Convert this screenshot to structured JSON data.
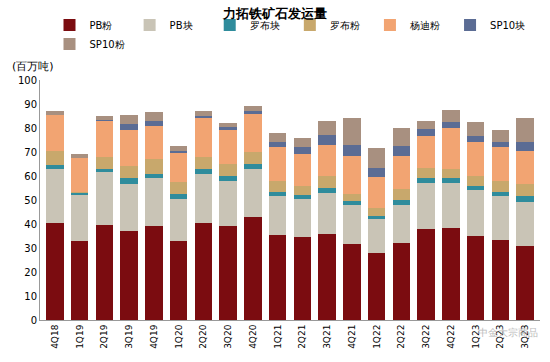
{
  "chart_data": {
    "type": "bar",
    "stacked": true,
    "title": "力拓铁矿石发运量",
    "y_label": "(百万吨)",
    "annotations": [
      "中金大宗商品"
    ],
    "categories": [
      "4Q18",
      "1Q19",
      "2Q19",
      "3Q19",
      "4Q19",
      "1Q20",
      "2Q20",
      "3Q20",
      "4Q20",
      "1Q21",
      "2Q21",
      "3Q21",
      "4Q21",
      "1Q22",
      "2Q22",
      "3Q22",
      "4Q22",
      "1Q23",
      "2Q23",
      "3Q23"
    ],
    "series": [
      {
        "name": "PB粉",
        "color": "#7b0c10",
        "values": [
          40.5,
          33,
          39.5,
          37,
          39,
          33,
          40.5,
          39,
          43,
          35.5,
          34.5,
          36,
          31.5,
          28,
          32,
          38,
          38.5,
          35,
          33.5,
          31
        ]
      },
      {
        "name": "PB块",
        "color": "#c9c4b6",
        "values": [
          22.5,
          19,
          22,
          19.5,
          20,
          17.5,
          20.5,
          19,
          20,
          16,
          16,
          17,
          16.5,
          14,
          16,
          19,
          18.5,
          19,
          18,
          18
        ]
      },
      {
        "name": "罗布块",
        "color": "#2f8c9c",
        "values": [
          1.5,
          1,
          1.5,
          2.5,
          2,
          2,
          2,
          2,
          2,
          2,
          1.5,
          2,
          1.5,
          1.5,
          2,
          2,
          2,
          2,
          2,
          2.5
        ]
      },
      {
        "name": "罗布粉",
        "color": "#c8a86c",
        "values": [
          6,
          0.5,
          5,
          5,
          6,
          5,
          5,
          5,
          5,
          4.5,
          4,
          5,
          3,
          3,
          4.5,
          4.5,
          4,
          4,
          4.5,
          5
        ]
      },
      {
        "name": "杨迪粉",
        "color": "#f2a472",
        "values": [
          15,
          14,
          15,
          15,
          14,
          12,
          16,
          14,
          16,
          14,
          13,
          13,
          16,
          13,
          14,
          13,
          17,
          14,
          14,
          14
        ]
      },
      {
        "name": "SP10块",
        "color": "#5b6c94",
        "values": [
          0,
          0,
          0.5,
          2.5,
          2,
          1,
          1,
          1.5,
          1,
          2,
          3,
          4,
          4.5,
          4,
          4,
          3,
          2.5,
          2.5,
          2,
          3.5
        ]
      },
      {
        "name": "SP10粉",
        "color": "#a89080",
        "values": [
          1.5,
          1.5,
          1.5,
          4,
          3.5,
          2,
          2,
          1.5,
          2,
          4,
          4,
          6,
          11,
          8,
          7.5,
          3.5,
          5,
          6,
          5,
          10
        ]
      }
    ],
    "ylim": [
      0,
      100
    ],
    "yticks": [
      0,
      10,
      20,
      30,
      40,
      50,
      60,
      70,
      80,
      90,
      100
    ],
    "grid": false,
    "legend": "top"
  }
}
